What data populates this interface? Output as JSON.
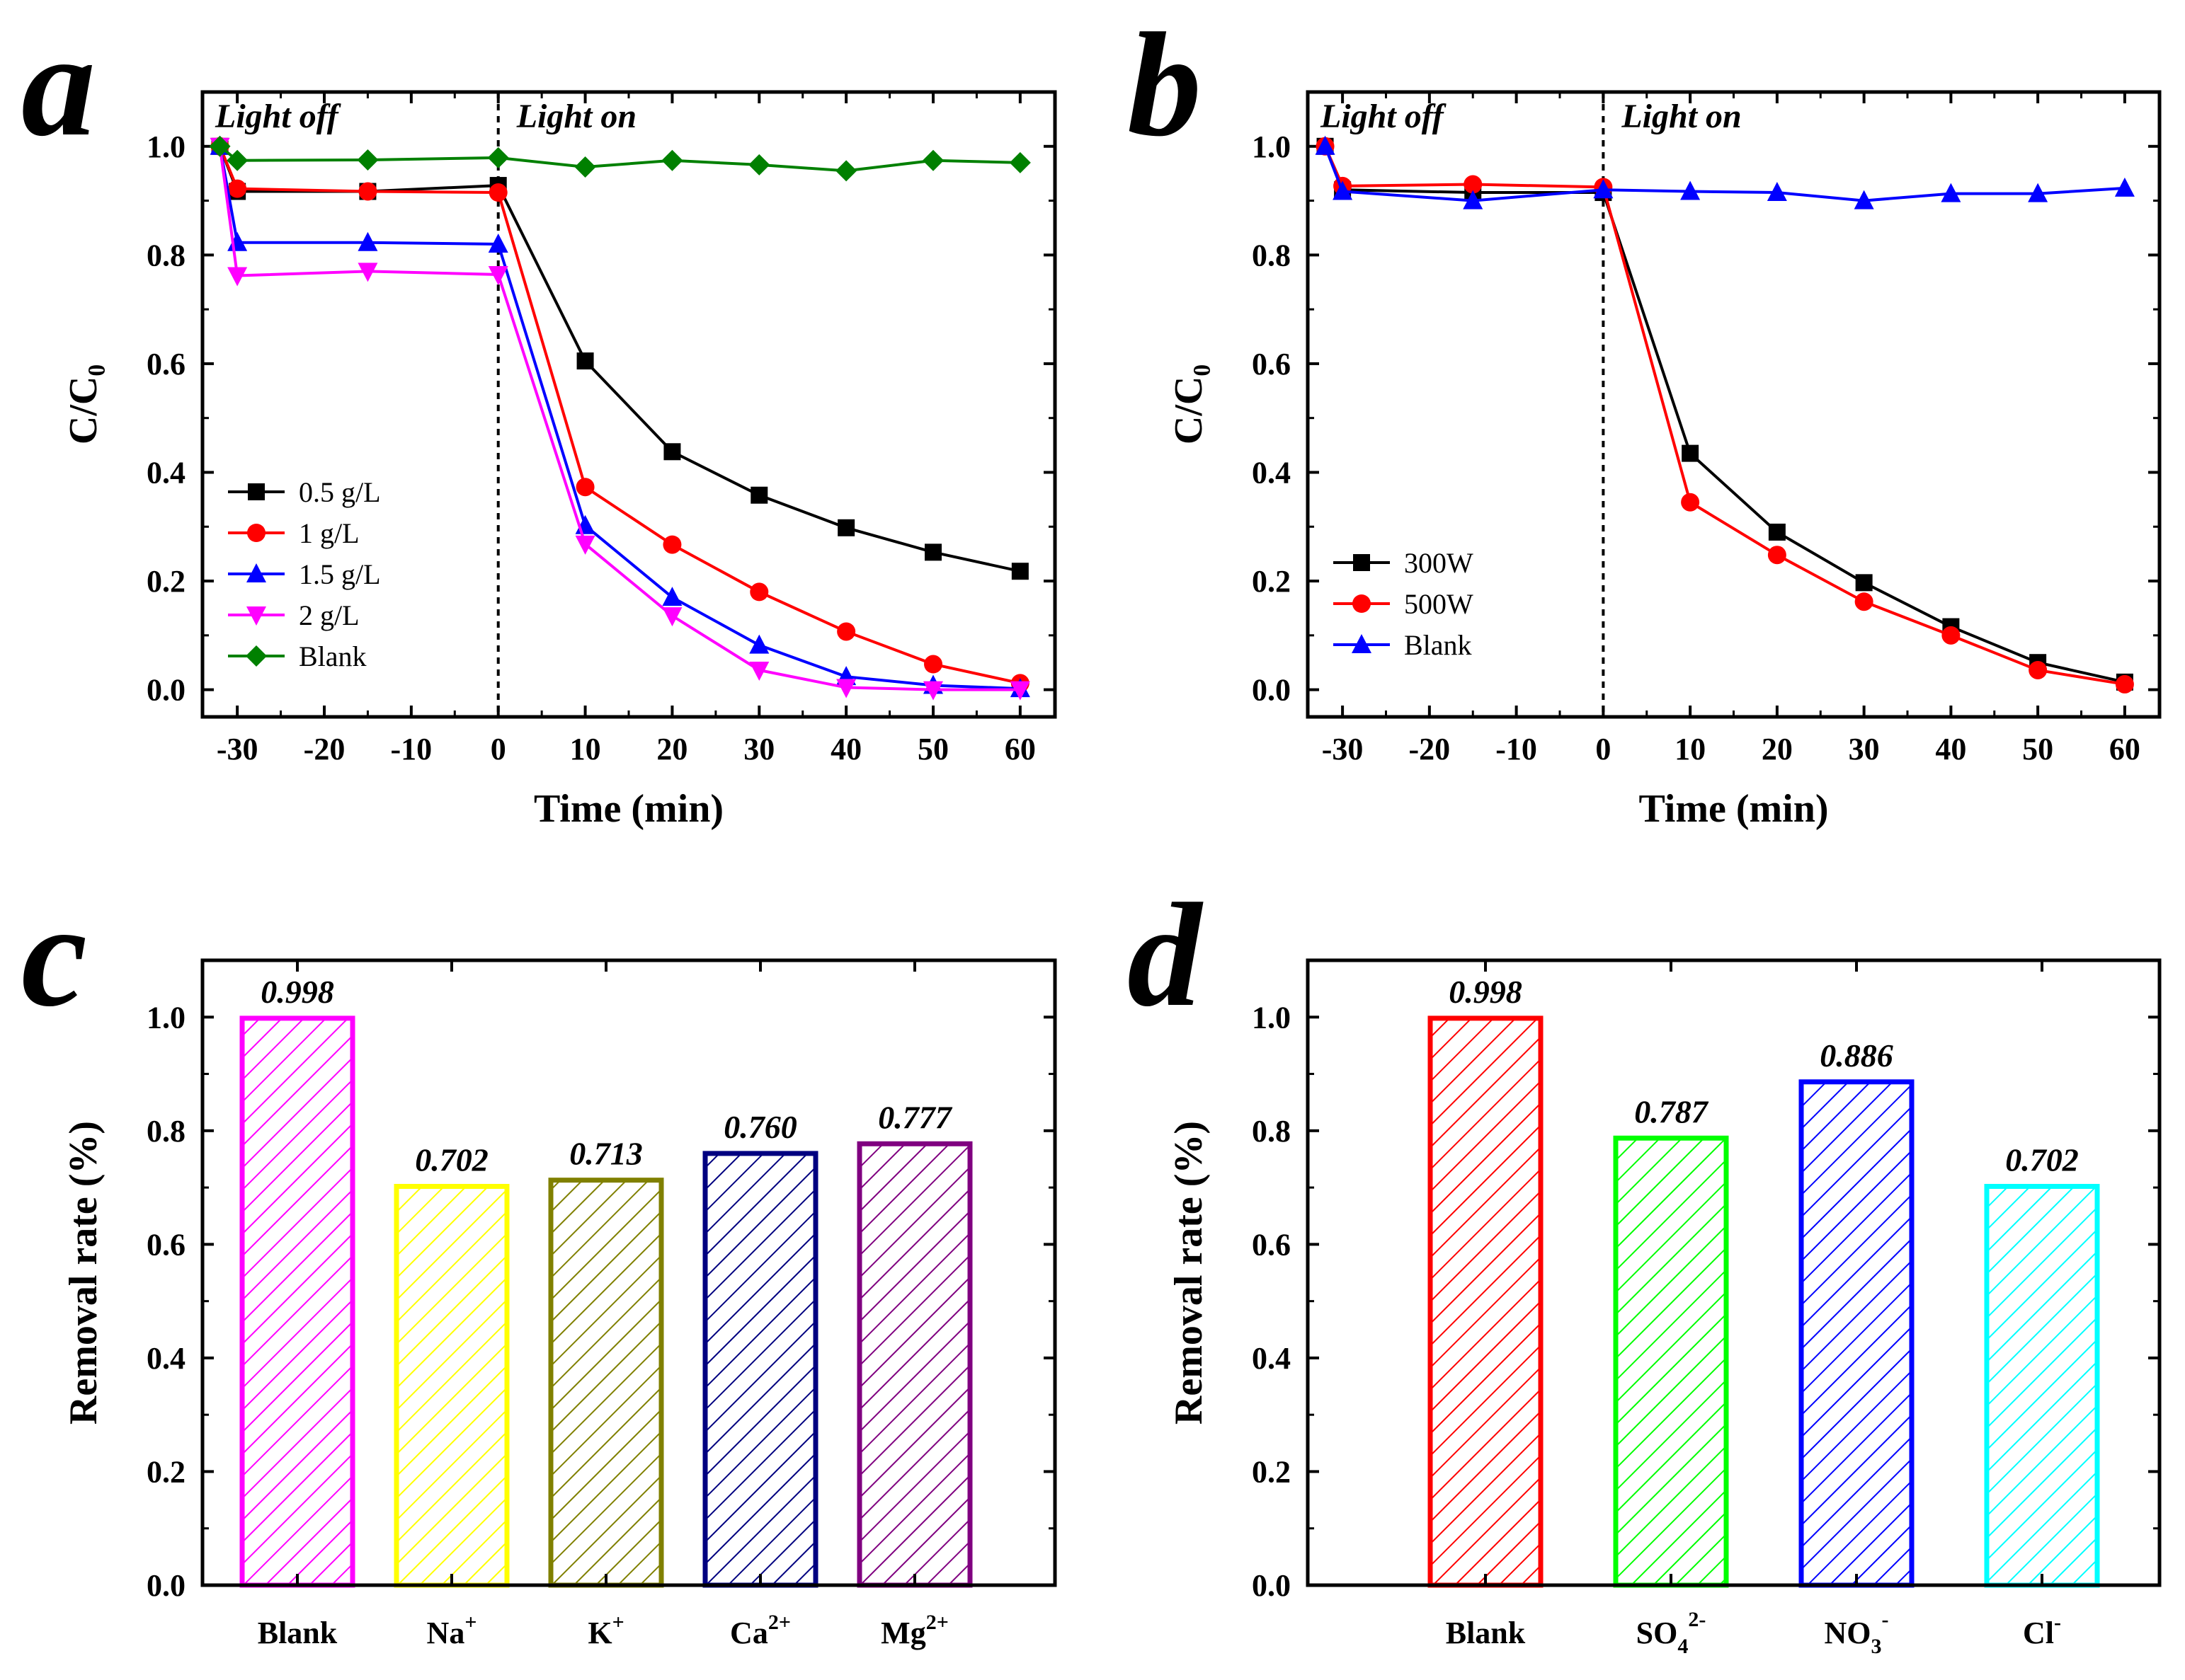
{
  "chart_data": [
    {
      "panel": "a",
      "type": "line",
      "xlabel": "Time (min)",
      "ylabel": "C/C₀",
      "xlim": [
        -34,
        64
      ],
      "ylim": [
        -0.05,
        1.1
      ],
      "xticks": [
        -30,
        -20,
        -10,
        0,
        10,
        20,
        30,
        40,
        50,
        60
      ],
      "yticks": [
        0.0,
        0.2,
        0.4,
        0.6,
        0.8,
        1.0
      ],
      "tick_labels_x": [
        "-30",
        "-20",
        "-10",
        "0",
        "10",
        "20",
        "30",
        "40",
        "50",
        "60"
      ],
      "tick_labels_y": [
        "0.0",
        "0.2",
        "0.4",
        "0.6",
        "0.8",
        "1.0"
      ],
      "divider_x": 0,
      "phase_labels": [
        "Light off",
        "Light on"
      ],
      "legend_position": "center-left",
      "x": [
        -32,
        -30,
        -15,
        0,
        10,
        20,
        30,
        40,
        50,
        60
      ],
      "series": [
        {
          "name": "0.5 g/L",
          "color": "#000000",
          "marker": "square",
          "values": [
            1.0,
            0.917,
            0.917,
            0.928,
            0.605,
            0.438,
            0.358,
            0.298,
            0.253,
            0.218
          ]
        },
        {
          "name": "1 g/L",
          "color": "#ff0000",
          "marker": "circle",
          "values": [
            1.0,
            0.922,
            0.917,
            0.915,
            0.373,
            0.267,
            0.18,
            0.107,
            0.047,
            0.012
          ]
        },
        {
          "name": "1.5 g/L",
          "color": "#0000ff",
          "marker": "triangle-up",
          "values": [
            1.0,
            0.823,
            0.823,
            0.82,
            0.302,
            0.17,
            0.082,
            0.024,
            0.008,
            0.002
          ]
        },
        {
          "name": "2 g/L",
          "color": "#ff00ff",
          "marker": "triangle-down",
          "values": [
            1.0,
            0.762,
            0.77,
            0.764,
            0.268,
            0.136,
            0.036,
            0.004,
            0.0,
            0.0
          ]
        },
        {
          "name": "Blank",
          "color": "#008000",
          "marker": "diamond",
          "values": [
            1.0,
            0.974,
            0.975,
            0.979,
            0.962,
            0.974,
            0.966,
            0.955,
            0.974,
            0.97
          ]
        }
      ]
    },
    {
      "panel": "b",
      "type": "line",
      "xlabel": "Time (min)",
      "ylabel": "C/C₀",
      "xlim": [
        -34,
        64
      ],
      "ylim": [
        -0.05,
        1.1
      ],
      "xticks": [
        -30,
        -20,
        -10,
        0,
        10,
        20,
        30,
        40,
        50,
        60
      ],
      "yticks": [
        0.0,
        0.2,
        0.4,
        0.6,
        0.8,
        1.0
      ],
      "tick_labels_x": [
        "-30",
        "-20",
        "-10",
        "0",
        "10",
        "20",
        "30",
        "40",
        "50",
        "60"
      ],
      "tick_labels_y": [
        "0.0",
        "0.2",
        "0.4",
        "0.6",
        "0.8",
        "1.0"
      ],
      "divider_x": 0,
      "phase_labels": [
        "Light off",
        "Light on"
      ],
      "legend_position": "bottom-left",
      "x": [
        -32,
        -30,
        -15,
        0,
        10,
        20,
        30,
        40,
        50,
        60
      ],
      "series": [
        {
          "name": "300W",
          "color": "#000000",
          "marker": "square",
          "values": [
            1.0,
            0.92,
            0.915,
            0.915,
            0.435,
            0.29,
            0.197,
            0.116,
            0.05,
            0.014
          ]
        },
        {
          "name": "500W",
          "color": "#ff0000",
          "marker": "circle",
          "values": [
            1.0,
            0.927,
            0.93,
            0.925,
            0.345,
            0.248,
            0.162,
            0.1,
            0.036,
            0.01
          ]
        },
        {
          "name": "Blank",
          "color": "#0000ff",
          "marker": "triangle-up",
          "values": [
            1.0,
            0.917,
            0.9,
            0.92,
            0.917,
            0.915,
            0.9,
            0.913,
            0.913,
            0.923
          ]
        }
      ]
    },
    {
      "panel": "c",
      "type": "bar",
      "ylabel": "Removal rate (%)",
      "ylim": [
        0,
        1.1
      ],
      "yticks": [
        0.0,
        0.2,
        0.4,
        0.6,
        0.8,
        1.0
      ],
      "tick_labels_y": [
        "0.0",
        "0.2",
        "0.4",
        "0.6",
        "0.8",
        "1.0"
      ],
      "categories": [
        {
          "base": "Blank",
          "sup": "",
          "sub": "",
          "sup2": ""
        },
        {
          "base": "Na",
          "sup": "+",
          "sub": "",
          "sup2": ""
        },
        {
          "base": "K",
          "sup": "+",
          "sub": "",
          "sup2": ""
        },
        {
          "base": "Ca",
          "sup": "2+",
          "sub": "",
          "sup2": ""
        },
        {
          "base": "Mg",
          "sup": "2+",
          "sub": "",
          "sup2": ""
        }
      ],
      "values": [
        0.998,
        0.702,
        0.713,
        0.76,
        0.777
      ],
      "value_labels": [
        "0.998",
        "0.702",
        "0.713",
        "0.760",
        "0.777"
      ],
      "colors": [
        "#ff00ff",
        "#ffff00",
        "#808000",
        "#000080",
        "#800080"
      ],
      "fill": "hatched"
    },
    {
      "panel": "d",
      "type": "bar",
      "ylabel": "Removal rate (%)",
      "ylim": [
        0,
        1.1
      ],
      "yticks": [
        0.0,
        0.2,
        0.4,
        0.6,
        0.8,
        1.0
      ],
      "tick_labels_y": [
        "0.0",
        "0.2",
        "0.4",
        "0.6",
        "0.8",
        "1.0"
      ],
      "categories": [
        {
          "base": "Blank",
          "sup": "",
          "sub": "",
          "sup2": ""
        },
        {
          "base": "SO",
          "sup": "",
          "sub": "4",
          "sup2": "2-"
        },
        {
          "base": "NO",
          "sup": "",
          "sub": "3",
          "sup2": "-"
        },
        {
          "base": "Cl",
          "sup": "-",
          "sub": "",
          "sup2": ""
        }
      ],
      "values": [
        0.998,
        0.787,
        0.886,
        0.702
      ],
      "value_labels": [
        "0.998",
        "0.787",
        "0.886",
        "0.702"
      ],
      "colors": [
        "#ff0000",
        "#00ff00",
        "#0000ff",
        "#00ffff"
      ],
      "fill": "hatched"
    }
  ]
}
